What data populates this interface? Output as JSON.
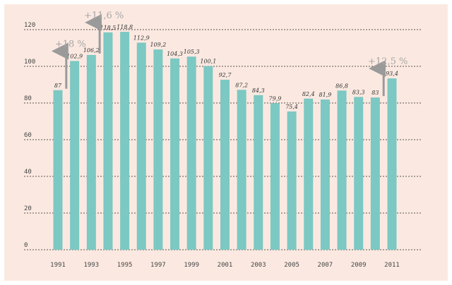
{
  "colors": {
    "background": "#fbe9e1",
    "bar": "#7cc8c3",
    "grid": "#222222",
    "arrow": "#9a9a9a"
  },
  "chart_data": {
    "type": "bar",
    "x": [
      1991,
      1992,
      1993,
      1994,
      1995,
      1996,
      1997,
      1998,
      1999,
      2000,
      2001,
      2002,
      2003,
      2004,
      2005,
      2006,
      2007,
      2008,
      2009,
      2010,
      2011
    ],
    "values": [
      87,
      102.9,
      106.2,
      118.5,
      118.8,
      112.9,
      109.2,
      104.3,
      105.3,
      100.1,
      92.7,
      87.2,
      84.3,
      79.9,
      75.4,
      82.4,
      81.9,
      86.8,
      83.3,
      83,
      93.4
    ],
    "value_labels": [
      "87",
      "102,9",
      "106,2",
      "118,5",
      "118,8",
      "112,9",
      "109,2",
      "104,3",
      "105,3",
      "100,1",
      "92,7",
      "87,2",
      "84,3",
      "79,9",
      "75,4",
      "82,4",
      "81,9",
      "86,8",
      "83,3",
      "83",
      "93,4"
    ],
    "x_tick_labels": [
      "1991",
      "1993",
      "1995",
      "1997",
      "1999",
      "2001",
      "2003",
      "2005",
      "2007",
      "2009",
      "2011"
    ],
    "y_ticks": [
      0,
      20,
      40,
      60,
      80,
      100,
      120
    ],
    "ylim": [
      0,
      120
    ],
    "grid": "horizontal dashed",
    "title": "",
    "xlabel": "",
    "ylabel": "",
    "annotations": [
      {
        "text": "+18 %",
        "from_year": 1991,
        "to_year": 1992
      },
      {
        "text": "+11,6 %",
        "from_year": 1993,
        "to_year": 1994
      },
      {
        "text": "+12,5 %",
        "from_year": 2010,
        "to_year": 2011
      }
    ]
  }
}
